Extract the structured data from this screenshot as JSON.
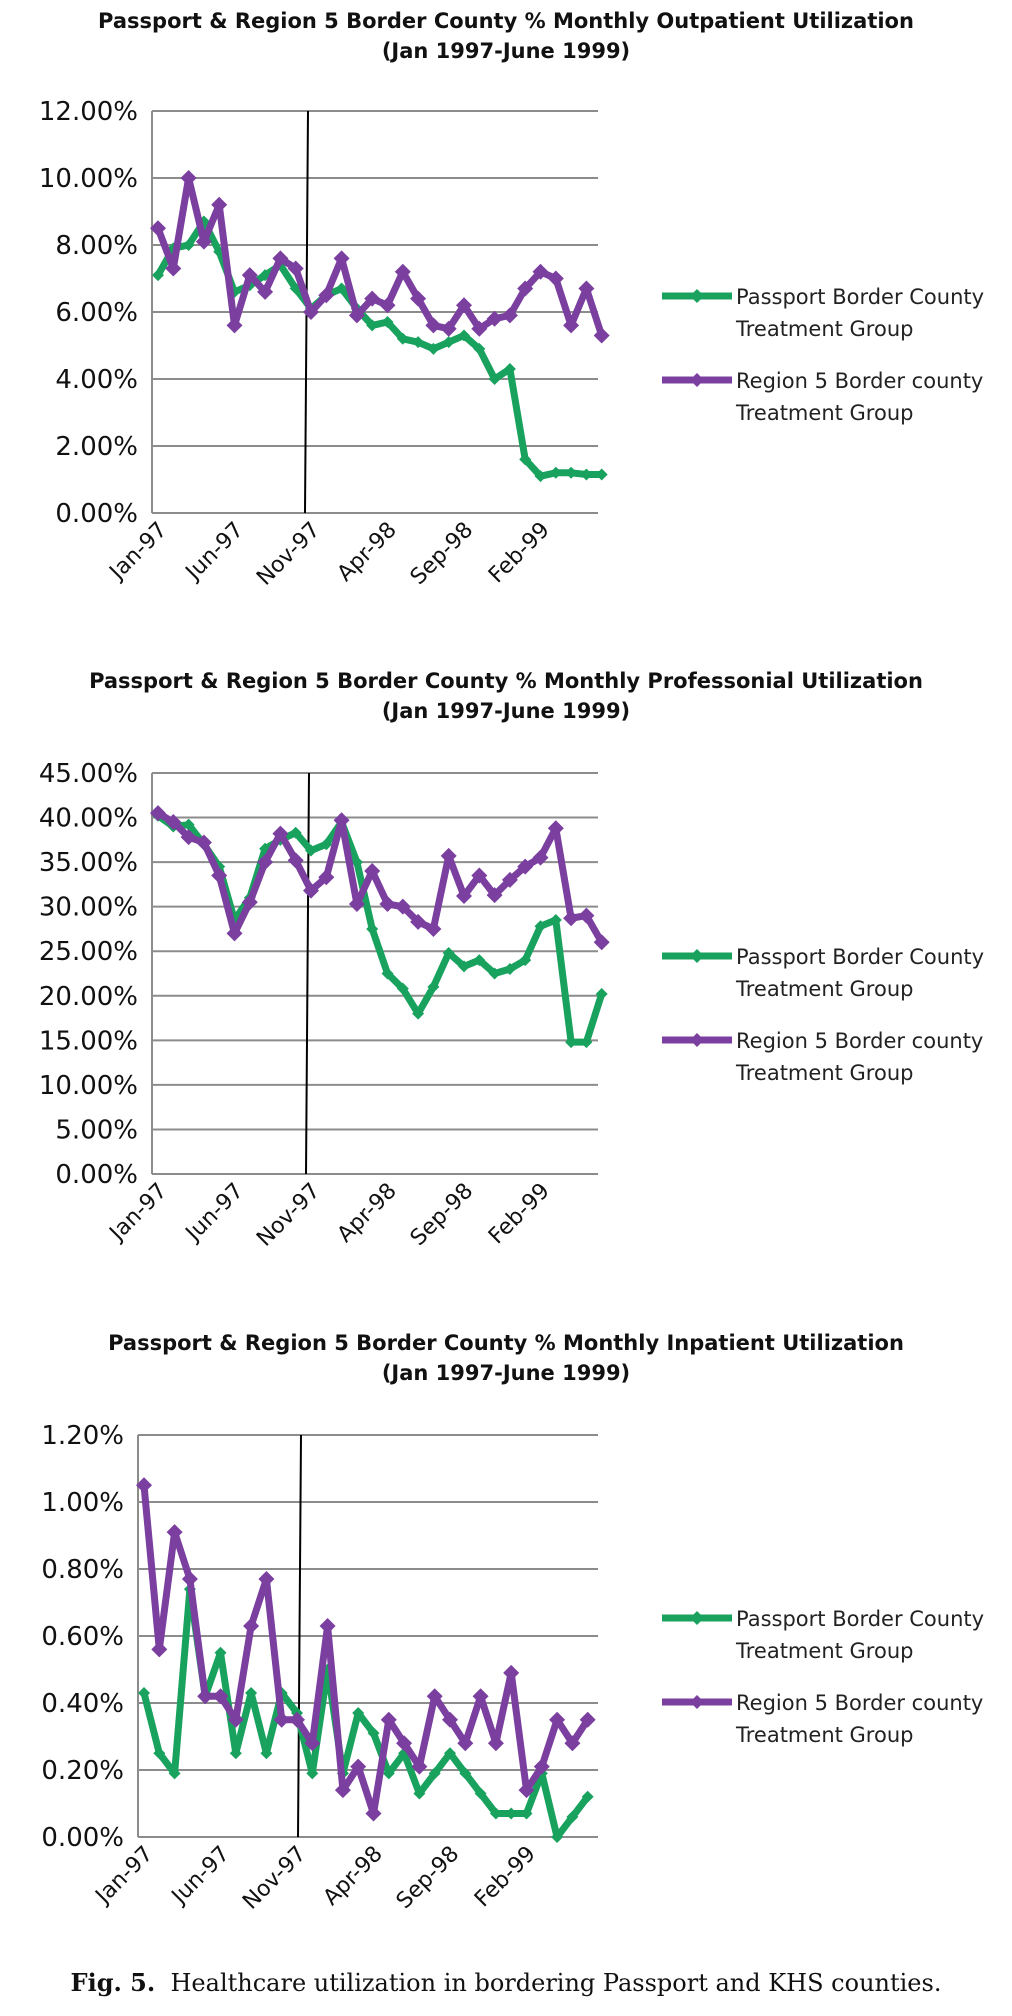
{
  "figure": {
    "caption_label": "Fig. 5.",
    "caption_text": "Healthcare utilization in bordering Passport and KHS counties."
  },
  "colors": {
    "passport": "#18a25e",
    "region5": "#7b3fa0",
    "grid": "#8c8c8c",
    "vline": "#000000"
  },
  "chart_data": [
    {
      "type": "line",
      "title": "Passport & Region 5 Border County % Monthly Outpatient Utilization",
      "subtitle": "(Jan 1997-June 1999)",
      "x_tick_labels": [
        "Jan-97",
        "Jun-97",
        "Nov-97",
        "Apr-98",
        "Sep-98",
        "Feb-99"
      ],
      "y_tick_labels": [
        "0.00%",
        "2.00%",
        "4.00%",
        "6.00%",
        "8.00%",
        "10.00%",
        "12.00%"
      ],
      "ylim": [
        0,
        12
      ],
      "vertical_line_month": "Nov-97",
      "x": [
        "Jan-97",
        "Feb-97",
        "Mar-97",
        "Apr-97",
        "May-97",
        "Jun-97",
        "Jul-97",
        "Aug-97",
        "Sep-97",
        "Oct-97",
        "Nov-97",
        "Dec-97",
        "Jan-98",
        "Feb-98",
        "Mar-98",
        "Apr-98",
        "May-98",
        "Jun-98",
        "Jul-98",
        "Aug-98",
        "Sep-98",
        "Oct-98",
        "Nov-98",
        "Dec-98",
        "Jan-99",
        "Feb-99",
        "Mar-99",
        "Apr-99",
        "May-99",
        "Jun-99"
      ],
      "series": [
        {
          "name": "Passport Border County Treatment Group",
          "color_key": "passport",
          "values": [
            7.1,
            7.9,
            8.0,
            8.7,
            7.8,
            6.6,
            6.8,
            7.1,
            7.4,
            6.7,
            6.1,
            6.5,
            6.7,
            6.1,
            5.6,
            5.7,
            5.2,
            5.1,
            4.9,
            5.1,
            5.3,
            4.9,
            4.0,
            4.3,
            1.6,
            1.1,
            1.2,
            1.2,
            1.15,
            1.15
          ]
        },
        {
          "name": "Region 5 Border county Treatment Group",
          "color_key": "region5",
          "values": [
            8.5,
            7.3,
            10.0,
            8.1,
            9.2,
            5.6,
            7.1,
            6.6,
            7.6,
            7.3,
            6.0,
            6.5,
            7.6,
            5.9,
            6.4,
            6.2,
            7.2,
            6.4,
            5.6,
            5.5,
            6.2,
            5.5,
            5.8,
            5.9,
            6.7,
            7.2,
            7.0,
            5.6,
            6.7,
            5.3
          ]
        }
      ],
      "legend_lines": [
        [
          "Passport Border County",
          "Treatment Group"
        ],
        [
          "Region 5 Border county",
          "Treatment Group"
        ]
      ]
    },
    {
      "type": "line",
      "title": "Passport & Region 5 Border County % Monthly Professonial Utilization",
      "subtitle": "(Jan 1997-June 1999)",
      "x_tick_labels": [
        "Jan-97",
        "Jun-97",
        "Nov-97",
        "Apr-98",
        "Sep-98",
        "Feb-99"
      ],
      "y_tick_labels": [
        "0.00%",
        "5.00%",
        "10.00%",
        "15.00%",
        "20.00%",
        "25.00%",
        "30.00%",
        "35.00%",
        "40.00%",
        "45.00%"
      ],
      "ylim": [
        0,
        45
      ],
      "vertical_line_month": "Nov-97",
      "x": [
        "Jan-97",
        "Feb-97",
        "Mar-97",
        "Apr-97",
        "May-97",
        "Jun-97",
        "Jul-97",
        "Aug-97",
        "Sep-97",
        "Oct-97",
        "Nov-97",
        "Dec-97",
        "Jan-98",
        "Feb-98",
        "Mar-98",
        "Apr-98",
        "May-98",
        "Jun-98",
        "Jul-98",
        "Aug-98",
        "Sep-98",
        "Oct-98",
        "Nov-98",
        "Dec-98",
        "Jan-99",
        "Feb-99",
        "Mar-99",
        "Apr-99",
        "May-99",
        "Jun-99"
      ],
      "series": [
        {
          "name": "Passport Border County Treatment Group",
          "color_key": "passport",
          "values": [
            40.2,
            39.0,
            39.2,
            37.0,
            34.5,
            28.5,
            31.0,
            36.5,
            37.5,
            38.3,
            36.3,
            37.0,
            39.5,
            35.0,
            27.5,
            22.5,
            20.8,
            18.0,
            21.0,
            24.8,
            23.3,
            24.0,
            22.5,
            23.0,
            24.0,
            27.8,
            28.5,
            14.8,
            14.8,
            20.2
          ]
        },
        {
          "name": "Region 5 Border county Treatment Group",
          "color_key": "region5",
          "values": [
            40.5,
            39.5,
            37.8,
            37.2,
            33.5,
            27.0,
            30.5,
            35.0,
            38.2,
            35.2,
            31.8,
            33.3,
            39.7,
            30.3,
            34.0,
            30.3,
            30.0,
            28.3,
            27.5,
            35.7,
            31.2,
            33.5,
            31.3,
            33.0,
            34.5,
            35.5,
            38.8,
            28.7,
            29.0,
            26.0
          ]
        }
      ],
      "legend_lines": [
        [
          "Passport Border County",
          "Treatment Group"
        ],
        [
          "Region 5 Border county",
          "Treatment Group"
        ]
      ]
    },
    {
      "type": "line",
      "title": "Passport & Region 5 Border County % Monthly Inpatient Utilization",
      "subtitle": "(Jan 1997-June 1999)",
      "x_tick_labels": [
        "Jan-97",
        "Jun-97",
        "Nov-97",
        "Apr-98",
        "Sep-98",
        "Feb-99"
      ],
      "y_tick_labels": [
        "0.00%",
        "0.20%",
        "0.40%",
        "0.60%",
        "0.80%",
        "1.00%",
        "1.20%"
      ],
      "ylim": [
        0,
        1.2
      ],
      "vertical_line_month": "Nov-97",
      "x": [
        "Jan-97",
        "Feb-97",
        "Mar-97",
        "Apr-97",
        "May-97",
        "Jun-97",
        "Jul-97",
        "Aug-97",
        "Sep-97",
        "Oct-97",
        "Nov-97",
        "Dec-97",
        "Jan-98",
        "Feb-98",
        "Mar-98",
        "Apr-98",
        "May-98",
        "Jun-98",
        "Jul-98",
        "Aug-98",
        "Sep-98",
        "Oct-98",
        "Nov-98",
        "Dec-98",
        "Jan-99",
        "Feb-99",
        "Mar-99",
        "Apr-99",
        "May-99",
        "Jun-99"
      ],
      "series": [
        {
          "name": "Passport Border County Treatment Group",
          "color_key": "passport",
          "values": [
            0.43,
            0.25,
            0.19,
            0.74,
            0.42,
            0.55,
            0.25,
            0.43,
            0.25,
            0.43,
            0.37,
            0.19,
            0.5,
            0.19,
            0.37,
            0.31,
            0.19,
            0.25,
            0.13,
            0.19,
            0.25,
            0.19,
            0.13,
            0.07,
            0.07,
            0.07,
            0.19,
            0.0,
            0.06,
            0.12
          ]
        },
        {
          "name": "Region 5 Border county Treatment Group",
          "color_key": "region5",
          "values": [
            1.05,
            0.56,
            0.91,
            0.77,
            0.42,
            0.42,
            0.35,
            0.63,
            0.77,
            0.35,
            0.35,
            0.28,
            0.63,
            0.14,
            0.21,
            0.07,
            0.35,
            0.28,
            0.21,
            0.42,
            0.35,
            0.28,
            0.42,
            0.28,
            0.49,
            0.14,
            0.21,
            0.35,
            0.28,
            0.35
          ]
        }
      ],
      "legend_lines": [
        [
          "Passport Border County",
          "Treatment Group"
        ],
        [
          "Region 5 Border county",
          "Treatment Group"
        ]
      ]
    }
  ]
}
